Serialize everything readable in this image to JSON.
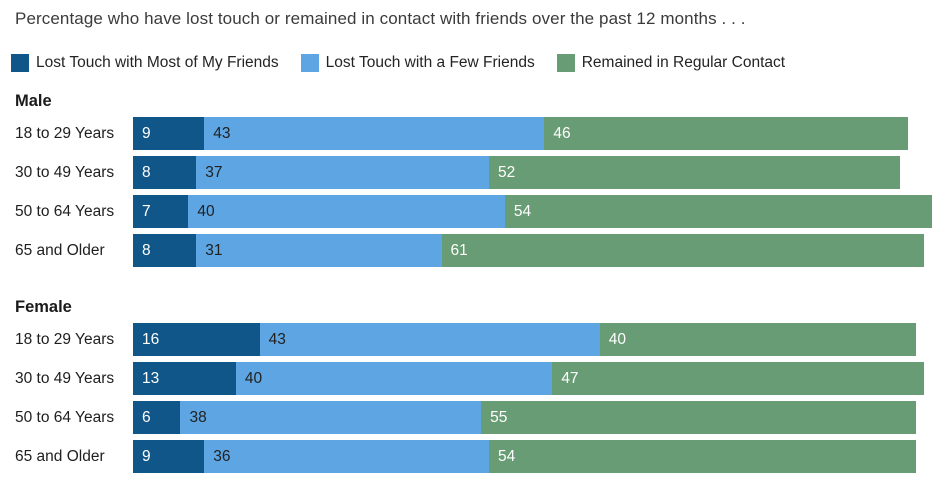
{
  "title": "Percentage who have lost touch or remained in contact with friends over the past 12 months . . .",
  "legend": {
    "items": [
      {
        "label": "Lost Touch with Most of My Friends",
        "color": "#115688"
      },
      {
        "label": "Lost Touch with a Few Friends",
        "color": "#5da6e3"
      },
      {
        "label": "Remained in Regular Contact",
        "color": "#689c74"
      }
    ]
  },
  "chart_data": {
    "type": "bar",
    "orientation": "horizontal",
    "stacked": true,
    "title": "Percentage who have lost touch or remained in contact with friends over the past 12 months . . .",
    "series_names": [
      "Lost Touch with Most of My Friends",
      "Lost Touch with a Few Friends",
      "Remained in Regular Contact"
    ],
    "series_colors": [
      "#115688",
      "#5da6e3",
      "#689c74"
    ],
    "xlim": [
      0,
      102
    ],
    "grid": false,
    "legend_position": "top",
    "groups": [
      {
        "name": "Male",
        "categories": [
          "18 to 29 Years",
          "30 to 49 Years",
          "50 to 64 Years",
          "65 and Older"
        ],
        "rows": [
          [
            9,
            43,
            46
          ],
          [
            8,
            37,
            52
          ],
          [
            7,
            40,
            54
          ],
          [
            8,
            31,
            61
          ]
        ]
      },
      {
        "name": "Female",
        "categories": [
          "18 to 29 Years",
          "30 to 49 Years",
          "50 to 64 Years",
          "65 and Older"
        ],
        "rows": [
          [
            16,
            43,
            40
          ],
          [
            13,
            40,
            47
          ],
          [
            6,
            38,
            55
          ],
          [
            9,
            36,
            54
          ]
        ]
      }
    ]
  }
}
